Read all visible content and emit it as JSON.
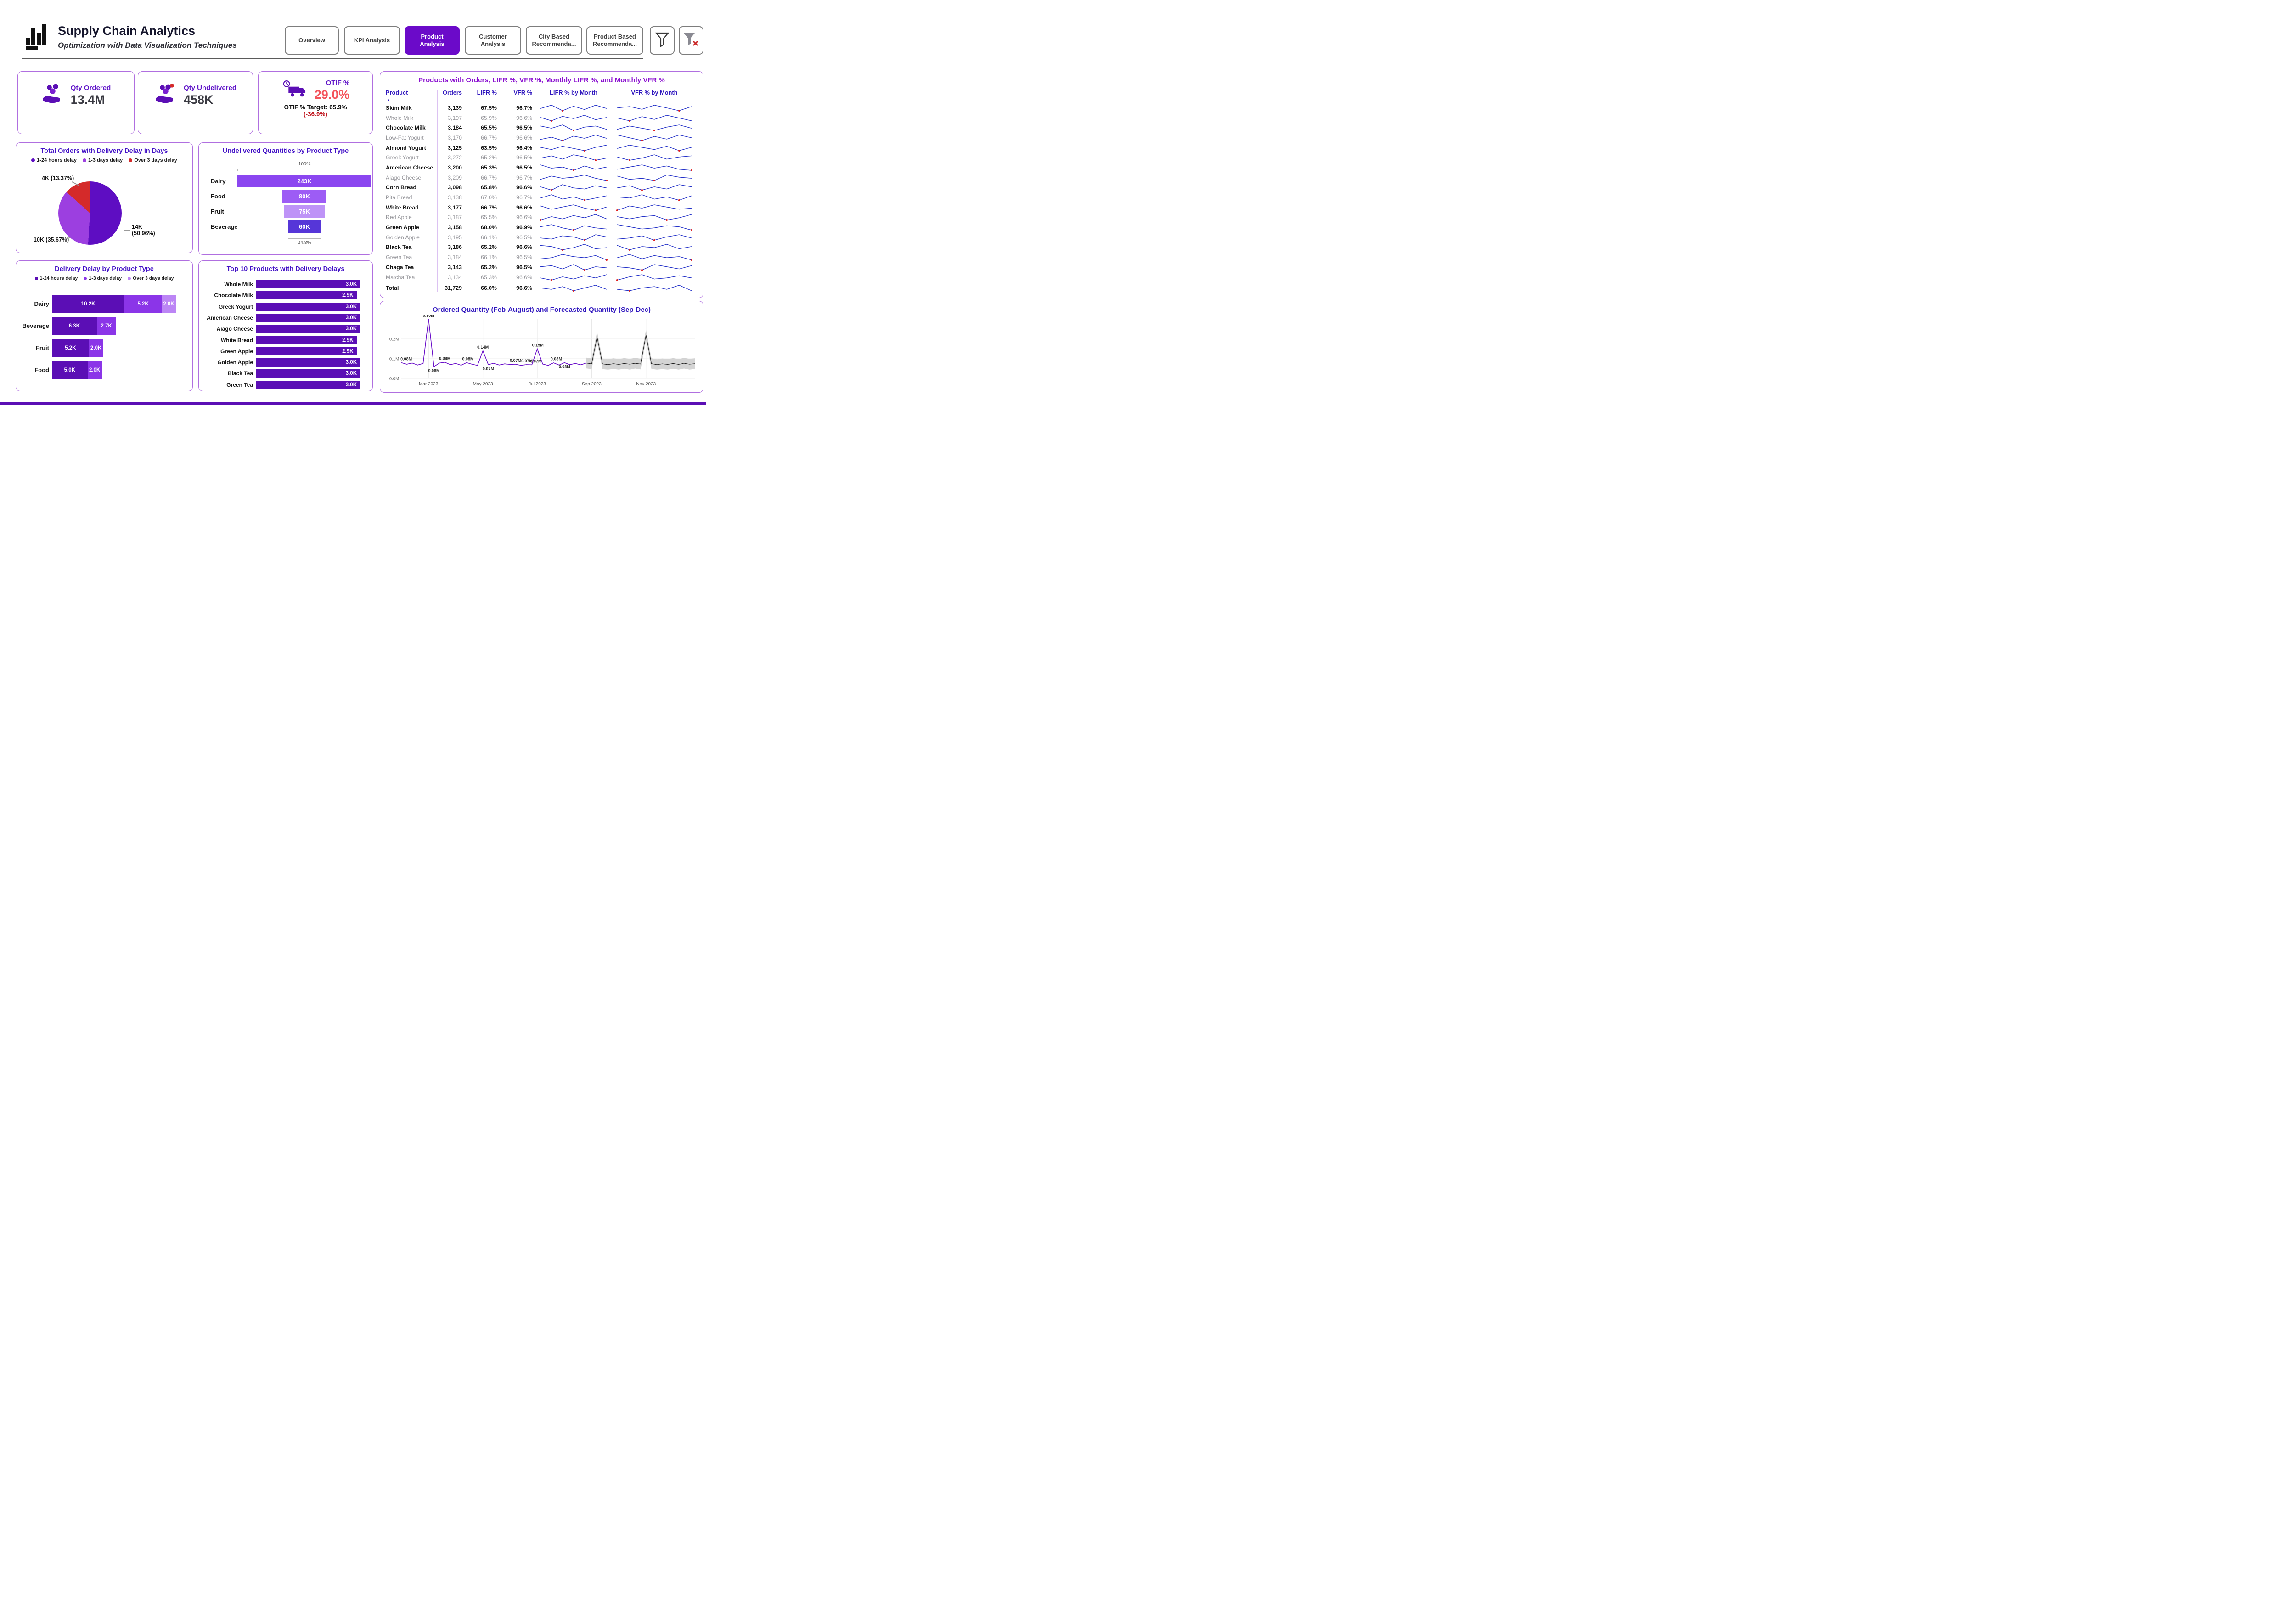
{
  "colors": {
    "accent": "#6B0AC9",
    "panel_border": "#B06FE0",
    "chart_title": "#4312C6",
    "table_title": "#8A0FD0",
    "kpi_label": "#5F14C8",
    "kpi_value": "#3A3A42",
    "otif_red": "#F4545C",
    "delta_red": "#C01820",
    "spark_blue": "#2432C8",
    "spark_dot_red": "#E02020",
    "bar_dark": "#5B0EB5",
    "bar_medium": "#8B35E8",
    "bar_light": "#BC85F5",
    "pie_red": "#D42A2A",
    "forecast_line": "#6A0FC9",
    "forecast_band": "#CDCDCD",
    "forecast_mean": "#1d1d1d"
  },
  "header": {
    "title": "Supply Chain Analytics",
    "subtitle": "Optimization with Data Visualization Techniques",
    "tabs": [
      {
        "label": "Overview",
        "active": false
      },
      {
        "label": "KPI Analysis",
        "active": false
      },
      {
        "label": "Product Analysis",
        "active": true
      },
      {
        "label": "Customer Analysis",
        "active": false
      },
      {
        "label": "City Based Recommenda...",
        "active": false
      },
      {
        "label": "Product Based Recommenda...",
        "active": false
      }
    ]
  },
  "kpis": {
    "qty_ordered": {
      "label": "Qty Ordered",
      "value": "13.4M"
    },
    "qty_undelivered": {
      "label": "Qty Undelivered",
      "value": "458K"
    },
    "otif": {
      "label": "OTIF %",
      "value": "29.0%",
      "target_text": "OTIF % Target: 65.9%",
      "delta_text": "(-36.9%)"
    }
  },
  "chart_data": [
    {
      "id": "delivery-delay-pie",
      "type": "pie",
      "title": "Total Orders with Delivery Delay in Days",
      "legend": [
        {
          "label": "1-24 hours delay",
          "color": "#5E0DC2"
        },
        {
          "label": "1-3 days delay",
          "color": "#9C3FE0"
        },
        {
          "label": "Over 3 days delay",
          "color": "#D42A2A"
        }
      ],
      "slices": [
        {
          "name": "1-24 hours delay",
          "value_label": "14K",
          "pct": 50.96,
          "color": "#5E0DC2",
          "callout": "14K (50.96%)"
        },
        {
          "name": "1-3 days delay",
          "value_label": "10K",
          "pct": 35.67,
          "color": "#9C3FE0",
          "callout": "10K (35.67%)"
        },
        {
          "name": "Over 3 days delay",
          "value_label": "4K",
          "pct": 13.37,
          "color": "#D42A2A",
          "callout": "4K (13.37%)"
        }
      ]
    },
    {
      "id": "undelivered-by-type",
      "type": "bar",
      "title": "Undelivered Quantities by Product Type",
      "axis_top_label": "100%",
      "axis_bottom_label": "24.8%",
      "bars": [
        {
          "category": "Dairy",
          "value": 243,
          "label": "243K",
          "color": "#8B46F0"
        },
        {
          "category": "Food",
          "value": 80,
          "label": "80K",
          "color": "#9D5CF5"
        },
        {
          "category": "Fruit",
          "value": 75,
          "label": "75K",
          "color": "#BE93F7"
        },
        {
          "category": "Beverage",
          "value": 60,
          "label": "60K",
          "color": "#5636D8"
        }
      ]
    },
    {
      "id": "delay-by-product-type",
      "type": "bar",
      "title": "Delivery Delay by Product Type",
      "legend": [
        {
          "label": "1-24 hours delay",
          "color": "#5B0EB5"
        },
        {
          "label": "1-3 days delay",
          "color": "#8B35E8"
        },
        {
          "label": "Over 3 days delay",
          "color": "#BC85F5"
        }
      ],
      "rows": [
        {
          "category": "Dairy",
          "segments": [
            {
              "value": 10.2,
              "label": "10.2K"
            },
            {
              "value": 5.2,
              "label": "5.2K"
            },
            {
              "value": 2.0,
              "label": "2.0K"
            }
          ]
        },
        {
          "category": "Beverage",
          "segments": [
            {
              "value": 6.3,
              "label": "6.3K"
            },
            {
              "value": 2.7,
              "label": "2.7K"
            }
          ]
        },
        {
          "category": "Fruit",
          "segments": [
            {
              "value": 5.2,
              "label": "5.2K"
            },
            {
              "value": 2.0,
              "label": "2.0K"
            }
          ]
        },
        {
          "category": "Food",
          "segments": [
            {
              "value": 5.0,
              "label": "5.0K"
            },
            {
              "value": 2.0,
              "label": "2.0K"
            }
          ]
        }
      ]
    },
    {
      "id": "top10-delivery-delays",
      "type": "bar",
      "title": "Top 10 Products with Delivery Delays",
      "bar_color": "#5B0EB5",
      "bars": [
        {
          "product": "Whole Milk",
          "value": 3.0,
          "label": "3.0K"
        },
        {
          "product": "Chocolate Milk",
          "value": 2.9,
          "label": "2.9K"
        },
        {
          "product": "Greek Yogurt",
          "value": 3.0,
          "label": "3.0K"
        },
        {
          "product": "American Cheese",
          "value": 3.0,
          "label": "3.0K"
        },
        {
          "product": "Aiago Cheese",
          "value": 3.0,
          "label": "3.0K"
        },
        {
          "product": "White Bread",
          "value": 2.9,
          "label": "2.9K"
        },
        {
          "product": "Green Apple",
          "value": 2.9,
          "label": "2.9K"
        },
        {
          "product": "Golden Apple",
          "value": 3.0,
          "label": "3.0K"
        },
        {
          "product": "Black Tea",
          "value": 3.0,
          "label": "3.0K"
        },
        {
          "product": "Green Tea",
          "value": 3.0,
          "label": "3.0K"
        }
      ]
    },
    {
      "id": "product-table",
      "type": "table",
      "title": "Products with Orders, LIFR %, VFR %, Monthly LIFR %, and Monthly VFR %",
      "columns": [
        "Product",
        "Orders",
        "LIFR %",
        "VFR %",
        "LIFR % by Month",
        "VFR % by Month"
      ],
      "rows": [
        {
          "product": "Skim Milk",
          "orders": "3,139",
          "lifr": "67.5%",
          "vfr": "96.7%",
          "lifr_spark": [
            5,
            8,
            3,
            7,
            4,
            8,
            5
          ],
          "vfr_spark": [
            5,
            6,
            4,
            7,
            5,
            3,
            6
          ]
        },
        {
          "product": "Whole Milk",
          "orders": "3,197",
          "lifr": "65.9%",
          "vfr": "96.6%",
          "lifr_spark": [
            6,
            3,
            7,
            5,
            8,
            4,
            6
          ],
          "vfr_spark": [
            6,
            4,
            7,
            5,
            8,
            6,
            4
          ]
        },
        {
          "product": "Chocolate Milk",
          "orders": "3,184",
          "lifr": "65.5%",
          "vfr": "96.5%",
          "lifr_spark": [
            7,
            5,
            8,
            3,
            6,
            7,
            4
          ],
          "vfr_spark": [
            4,
            7,
            5,
            3,
            6,
            8,
            5
          ]
        },
        {
          "product": "Low-Fat Yogurt",
          "orders": "3,170",
          "lifr": "66.7%",
          "vfr": "96.6%",
          "lifr_spark": [
            4,
            6,
            3,
            7,
            5,
            8,
            5
          ],
          "vfr_spark": [
            7,
            5,
            3,
            6,
            4,
            7,
            5
          ]
        },
        {
          "product": "Almond Yogurt",
          "orders": "3,125",
          "lifr": "63.5%",
          "vfr": "96.4%",
          "lifr_spark": [
            6,
            4,
            7,
            5,
            3,
            6,
            8
          ],
          "vfr_spark": [
            5,
            8,
            6,
            4,
            7,
            3,
            6
          ]
        },
        {
          "product": "Greek Yogurt",
          "orders": "3,272",
          "lifr": "65.2%",
          "vfr": "96.5%",
          "lifr_spark": [
            5,
            7,
            4,
            8,
            6,
            3,
            5
          ],
          "vfr_spark": [
            6,
            3,
            5,
            8,
            4,
            6,
            7
          ]
        },
        {
          "product": "American Cheese",
          "orders": "3,200",
          "lifr": "65.3%",
          "vfr": "96.5%",
          "lifr_spark": [
            8,
            5,
            6,
            3,
            7,
            4,
            6
          ],
          "vfr_spark": [
            4,
            6,
            8,
            5,
            7,
            4,
            3
          ]
        },
        {
          "product": "Aiago Cheese",
          "orders": "3,209",
          "lifr": "66.7%",
          "vfr": "96.7%",
          "lifr_spark": [
            4,
            7,
            5,
            6,
            8,
            5,
            3
          ],
          "vfr_spark": [
            7,
            4,
            5,
            3,
            8,
            6,
            5
          ]
        },
        {
          "product": "Corn Bread",
          "orders": "3,098",
          "lifr": "65.8%",
          "vfr": "96.6%",
          "lifr_spark": [
            6,
            3,
            8,
            5,
            4,
            7,
            5
          ],
          "vfr_spark": [
            5,
            7,
            3,
            6,
            4,
            8,
            6
          ]
        },
        {
          "product": "Pita Bread",
          "orders": "3,138",
          "lifr": "67.0%",
          "vfr": "96.7%",
          "lifr_spark": [
            5,
            8,
            4,
            6,
            3,
            5,
            7
          ],
          "vfr_spark": [
            6,
            5,
            8,
            4,
            6,
            3,
            7
          ]
        },
        {
          "product": "White Bread",
          "orders": "3,177",
          "lifr": "66.7%",
          "vfr": "96.6%",
          "lifr_spark": [
            7,
            4,
            6,
            8,
            5,
            3,
            6
          ],
          "vfr_spark": [
            3,
            7,
            5,
            8,
            6,
            4,
            5
          ]
        },
        {
          "product": "Red Apple",
          "orders": "3,187",
          "lifr": "65.5%",
          "vfr": "96.6%",
          "lifr_spark": [
            3,
            6,
            4,
            7,
            5,
            8,
            4
          ],
          "vfr_spark": [
            6,
            4,
            6,
            7,
            3,
            5,
            8
          ]
        },
        {
          "product": "Green Apple",
          "orders": "3,158",
          "lifr": "68.0%",
          "vfr": "96.9%",
          "lifr_spark": [
            6,
            8,
            5,
            3,
            7,
            5,
            4
          ],
          "vfr_spark": [
            8,
            6,
            4,
            5,
            7,
            6,
            3
          ]
        },
        {
          "product": "Golden Apple",
          "orders": "3,195",
          "lifr": "66.1%",
          "vfr": "96.5%",
          "lifr_spark": [
            5,
            4,
            7,
            6,
            3,
            8,
            6
          ],
          "vfr_spark": [
            4,
            5,
            7,
            3,
            6,
            8,
            5
          ]
        },
        {
          "product": "Black Tea",
          "orders": "3,186",
          "lifr": "65.2%",
          "vfr": "96.6%",
          "lifr_spark": [
            7,
            6,
            3,
            5,
            8,
            4,
            5
          ],
          "vfr_spark": [
            7,
            3,
            6,
            5,
            8,
            4,
            6
          ]
        },
        {
          "product": "Green Tea",
          "orders": "3,184",
          "lifr": "66.1%",
          "vfr": "96.5%",
          "lifr_spark": [
            4,
            5,
            8,
            6,
            5,
            7,
            3
          ],
          "vfr_spark": [
            5,
            8,
            4,
            7,
            5,
            6,
            3
          ]
        },
        {
          "product": "Chaga Tea",
          "orders": "3,143",
          "lifr": "65.2%",
          "vfr": "96.5%",
          "lifr_spark": [
            6,
            7,
            4,
            8,
            3,
            6,
            5
          ],
          "vfr_spark": [
            6,
            5,
            3,
            8,
            6,
            4,
            7
          ]
        },
        {
          "product": "Matcha Tea",
          "orders": "3,134",
          "lifr": "65.3%",
          "vfr": "96.6%",
          "lifr_spark": [
            5,
            3,
            6,
            4,
            7,
            5,
            8
          ],
          "vfr_spark": [
            3,
            6,
            8,
            4,
            5,
            7,
            5
          ]
        }
      ],
      "total": {
        "product": "Total",
        "orders": "31,729",
        "lifr": "66.0%",
        "vfr": "96.6%",
        "lifr_spark": [
          6,
          5,
          7,
          4,
          6,
          8,
          5
        ],
        "vfr_spark": [
          5,
          4,
          6,
          7,
          5,
          8,
          4
        ]
      }
    },
    {
      "id": "ordered-forecast",
      "type": "line",
      "title": "Ordered Quantity (Feb-August) and Forecasted Quantity (Sep-Dec)",
      "y_ticks": [
        {
          "v": 0.0,
          "label": "0.0M"
        },
        {
          "v": 0.1,
          "label": "0.1M"
        },
        {
          "v": 0.2,
          "label": "0.2M"
        }
      ],
      "x_ticks": [
        {
          "m": 1,
          "label": "Mar 2023"
        },
        {
          "m": 3,
          "label": "May 2023"
        },
        {
          "m": 5,
          "label": "Jul 2023"
        },
        {
          "m": 7,
          "label": "Sep 2023"
        },
        {
          "m": 9,
          "label": "Nov 2023"
        }
      ],
      "ylim": [
        0,
        0.32
      ],
      "actual": {
        "x": [
          0,
          0.2,
          0.4,
          0.6,
          0.8,
          1.0,
          1.2,
          1.4,
          1.6,
          1.8,
          2.0,
          2.2,
          2.4,
          2.6,
          2.8,
          3.0,
          3.2,
          3.4,
          3.6,
          3.8,
          4.0,
          4.2,
          4.4,
          4.6,
          4.8,
          5.0,
          5.2,
          5.4,
          5.6,
          5.8,
          6.0,
          6.2,
          6.4,
          6.6,
          6.8
        ],
        "y": [
          0.08,
          0.072,
          0.078,
          0.068,
          0.076,
          0.3,
          0.06,
          0.078,
          0.082,
          0.07,
          0.076,
          0.067,
          0.08,
          0.072,
          0.066,
          0.14,
          0.07,
          0.077,
          0.068,
          0.074,
          0.071,
          0.072,
          0.066,
          0.07,
          0.069,
          0.15,
          0.073,
          0.066,
          0.079,
          0.068,
          0.08,
          0.07,
          0.076,
          0.069,
          0.078
        ]
      },
      "forecast": {
        "x": [
          6.8,
          7.0,
          7.2,
          7.4,
          7.6,
          7.8,
          8.0,
          8.2,
          8.4,
          8.6,
          8.8,
          9.0,
          9.2,
          9.4,
          9.6,
          9.8,
          10.0,
          10.2,
          10.4,
          10.6,
          10.8
        ],
        "mean": [
          0.078,
          0.074,
          0.21,
          0.074,
          0.07,
          0.075,
          0.071,
          0.076,
          0.072,
          0.077,
          0.073,
          0.22,
          0.075,
          0.07,
          0.074,
          0.071,
          0.076,
          0.071,
          0.077,
          0.072,
          0.075
        ],
        "upper": [
          0.105,
          0.101,
          0.237,
          0.101,
          0.097,
          0.102,
          0.098,
          0.103,
          0.099,
          0.104,
          0.1,
          0.247,
          0.102,
          0.097,
          0.101,
          0.098,
          0.103,
          0.098,
          0.104,
          0.099,
          0.102
        ],
        "lower": [
          0.051,
          0.047,
          0.183,
          0.047,
          0.045,
          0.048,
          0.045,
          0.049,
          0.045,
          0.05,
          0.046,
          0.193,
          0.048,
          0.045,
          0.047,
          0.045,
          0.049,
          0.045,
          0.05,
          0.045,
          0.048
        ]
      },
      "annotations": [
        {
          "m": 0.18,
          "v": 0.08,
          "label": "0.08M",
          "pos": "above"
        },
        {
          "m": 1.0,
          "v": 0.3,
          "label": "0.30M",
          "pos": "above"
        },
        {
          "m": 1.2,
          "v": 0.06,
          "label": "0.06M",
          "pos": "below"
        },
        {
          "m": 1.6,
          "v": 0.082,
          "label": "0.08M",
          "pos": "above"
        },
        {
          "m": 2.45,
          "v": 0.08,
          "label": "0.08M",
          "pos": "above"
        },
        {
          "m": 3.0,
          "v": 0.14,
          "label": "0.14M",
          "pos": "above"
        },
        {
          "m": 3.2,
          "v": 0.07,
          "label": "0.07M",
          "pos": "below"
        },
        {
          "m": 4.2,
          "v": 0.072,
          "label": "0.07M",
          "pos": "above"
        },
        {
          "m": 4.62,
          "v": 0.07,
          "label": "0.07M",
          "pos": "above"
        },
        {
          "m": 4.95,
          "v": 0.069,
          "label": "0.07M",
          "pos": "above"
        },
        {
          "m": 5.02,
          "v": 0.15,
          "label": "0.15M",
          "pos": "above"
        },
        {
          "m": 5.7,
          "v": 0.08,
          "label": "0.08M",
          "pos": "above"
        },
        {
          "m": 6.0,
          "v": 0.08,
          "label": "0.08M",
          "pos": "below"
        }
      ]
    }
  ]
}
